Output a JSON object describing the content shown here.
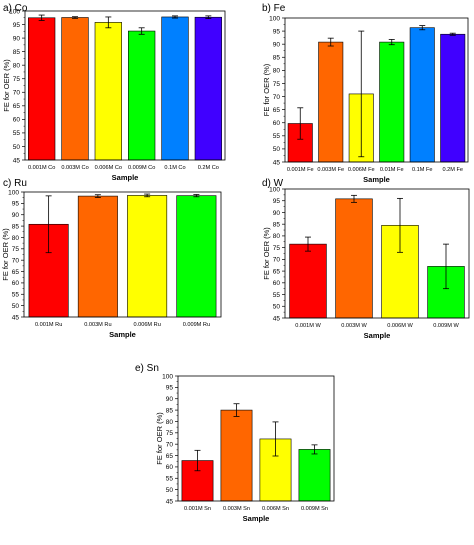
{
  "chart_data": [
    {
      "type": "bar",
      "title": "a) Co",
      "xlabel": "Sample",
      "ylabel": "FE for OER (%)",
      "ylim": [
        45,
        100
      ],
      "yticks": [
        45,
        50,
        55,
        60,
        65,
        70,
        75,
        80,
        85,
        90,
        95,
        100
      ],
      "grid": false,
      "categories": [
        "0.001M Co",
        "0.003M Co",
        "0.006M Co",
        "0.009M Co",
        "0.1M Co",
        "0.2M Co"
      ],
      "values": [
        97.5,
        97.6,
        95.8,
        92.6,
        97.8,
        97.7
      ],
      "errors": [
        1.0,
        0.3,
        2.0,
        1.2,
        0.4,
        0.5
      ],
      "colors": [
        "#ff0000",
        "#ff6600",
        "#ffff00",
        "#00ff00",
        "#0080ff",
        "#4000ff"
      ]
    },
    {
      "type": "bar",
      "title": "b) Fe",
      "xlabel": "Sample",
      "ylabel": "FE for OER (%)",
      "ylim": [
        45,
        100
      ],
      "yticks": [
        45,
        50,
        55,
        60,
        65,
        70,
        75,
        80,
        85,
        90,
        95,
        100
      ],
      "grid": false,
      "categories": [
        "0.001M Fe",
        "0.003M Fe",
        "0.006M Fe",
        "0.01M Fe",
        "0.1M Fe",
        "0.2M Fe"
      ],
      "values": [
        59.7,
        90.8,
        71.0,
        90.8,
        96.3,
        93.8
      ],
      "errors": [
        6.0,
        1.5,
        24.0,
        1.0,
        0.8,
        0.4
      ],
      "colors": [
        "#ff0000",
        "#ff6600",
        "#ffff00",
        "#00ff00",
        "#0080ff",
        "#4000ff"
      ]
    },
    {
      "type": "bar",
      "title": "c) Ru",
      "xlabel": "Sample",
      "ylabel": "FE for OER (%)",
      "ylim": [
        45,
        100
      ],
      "yticks": [
        45,
        50,
        55,
        60,
        65,
        70,
        75,
        80,
        85,
        90,
        95,
        100
      ],
      "grid": false,
      "categories": [
        "0.001M Ru",
        "0.003M Ru",
        "0.006M Ru",
        "0.009M Ru"
      ],
      "values": [
        85.8,
        98.2,
        98.5,
        98.4
      ],
      "errors": [
        12.5,
        0.6,
        0.6,
        0.5
      ],
      "colors": [
        "#ff0000",
        "#ff6600",
        "#ffff00",
        "#00ff00"
      ]
    },
    {
      "type": "bar",
      "title": "d) W",
      "xlabel": "Sample",
      "ylabel": "FE for OER (%)",
      "ylim": [
        45,
        100
      ],
      "yticks": [
        45,
        50,
        55,
        60,
        65,
        70,
        75,
        80,
        85,
        90,
        95,
        100
      ],
      "grid": false,
      "categories": [
        "0.001M W",
        "0.003M W",
        "0.006M W",
        "0.009M W"
      ],
      "values": [
        76.5,
        95.8,
        84.5,
        67.0
      ],
      "errors": [
        3.0,
        1.5,
        11.5,
        9.5
      ],
      "colors": [
        "#ff0000",
        "#ff6600",
        "#ffff00",
        "#00ff00"
      ]
    },
    {
      "type": "bar",
      "title": "e) Sn",
      "xlabel": "Sample",
      "ylabel": "FE for OER (%)",
      "ylim": [
        45,
        100
      ],
      "yticks": [
        45,
        50,
        55,
        60,
        65,
        70,
        75,
        80,
        85,
        90,
        95,
        100
      ],
      "grid": false,
      "categories": [
        "0.001M Sn",
        "0.003M Sn",
        "0.006M Sn",
        "0.009M Sn"
      ],
      "values": [
        62.8,
        85.0,
        72.3,
        67.7
      ],
      "errors": [
        4.5,
        2.8,
        7.5,
        2.0
      ],
      "colors": [
        "#ff0000",
        "#ff6600",
        "#ffff00",
        "#00ff00"
      ]
    }
  ]
}
